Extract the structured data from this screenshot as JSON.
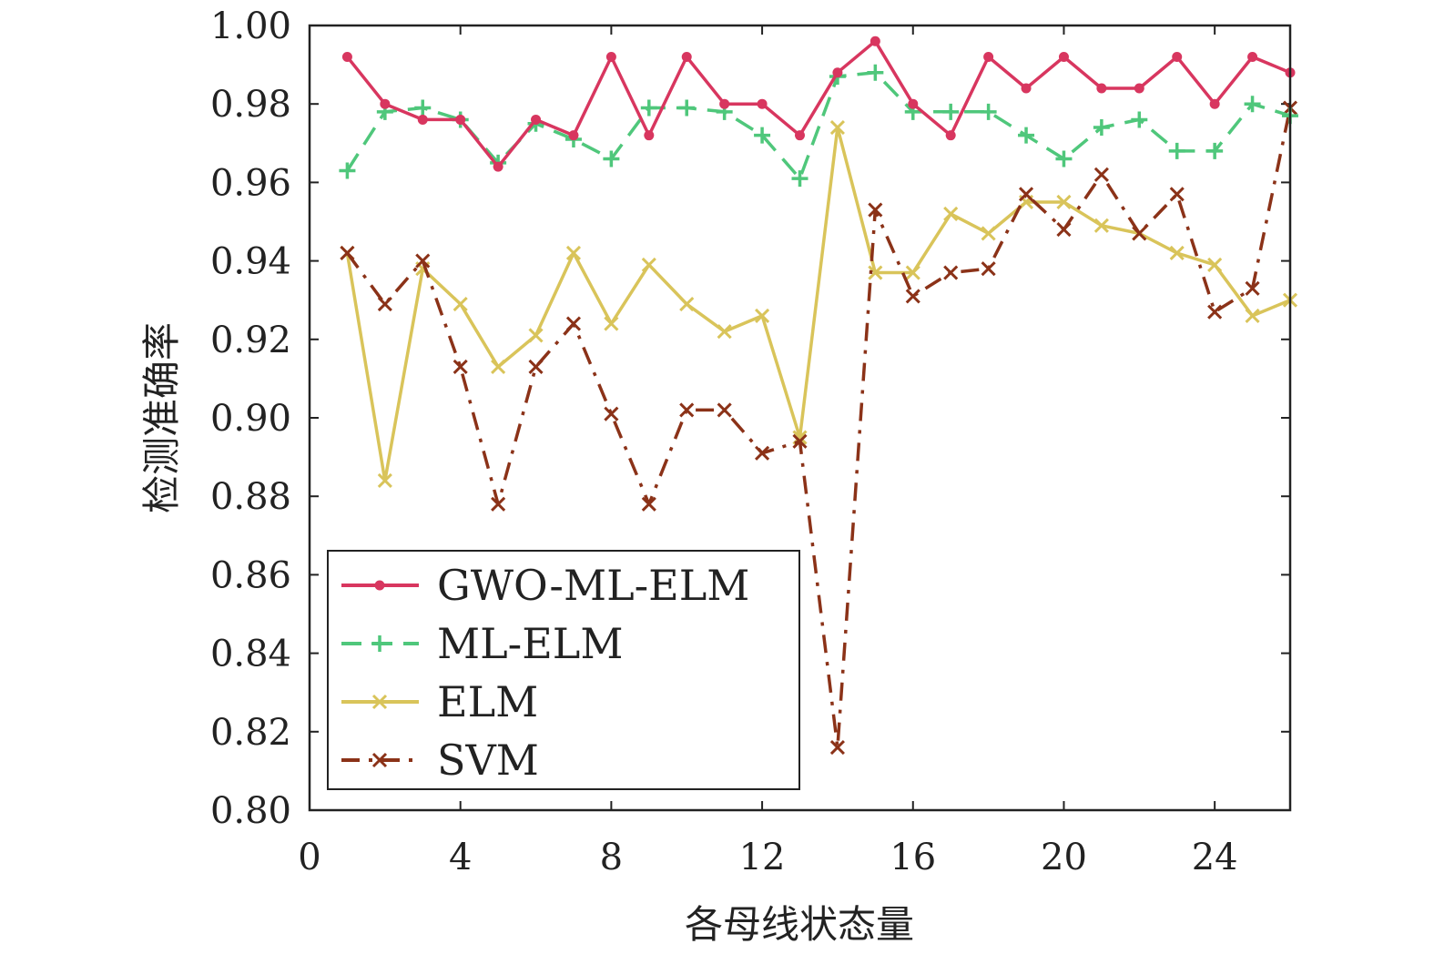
{
  "chart_data": {
    "type": "line",
    "xlabel": "各母线状态量",
    "ylabel": "检测准确率",
    "xlim": [
      0,
      26
    ],
    "ylim": [
      0.8,
      1.0
    ],
    "xticks": [
      0,
      4,
      8,
      12,
      16,
      20,
      24
    ],
    "yticks": [
      "0.80",
      "0.82",
      "0.84",
      "0.86",
      "0.88",
      "0.90",
      "0.92",
      "0.94",
      "0.96",
      "0.98",
      "1.00"
    ],
    "legend_position": "lower-left",
    "x": [
      1,
      2,
      3,
      4,
      5,
      6,
      7,
      8,
      9,
      10,
      11,
      12,
      13,
      14,
      15,
      16,
      17,
      18,
      19,
      20,
      21,
      22,
      23,
      24,
      25,
      26
    ],
    "series": [
      {
        "name": "GWO-ML-ELM",
        "color": "#d8365f",
        "style": "solid",
        "marker": "dot",
        "values": [
          0.992,
          0.98,
          0.976,
          0.976,
          0.964,
          0.976,
          0.972,
          0.992,
          0.972,
          0.992,
          0.98,
          0.98,
          0.972,
          0.988,
          0.996,
          0.98,
          0.972,
          0.992,
          0.984,
          0.992,
          0.984,
          0.984,
          0.992,
          0.98,
          0.992,
          0.988
        ]
      },
      {
        "name": "ML-ELM",
        "color": "#4fc77b",
        "style": "dashed",
        "marker": "plus",
        "values": [
          0.963,
          0.978,
          0.979,
          0.976,
          0.965,
          0.975,
          0.971,
          0.966,
          0.979,
          0.979,
          0.978,
          0.972,
          0.961,
          0.987,
          0.988,
          0.978,
          0.978,
          0.978,
          0.972,
          0.966,
          0.974,
          0.976,
          0.968,
          0.968,
          0.98,
          0.977
        ]
      },
      {
        "name": "ELM",
        "color": "#d9c45a",
        "style": "solid",
        "marker": "x",
        "values": [
          0.942,
          0.884,
          0.938,
          0.929,
          0.913,
          0.921,
          0.942,
          0.924,
          0.939,
          0.929,
          0.922,
          0.926,
          0.895,
          0.974,
          0.937,
          0.937,
          0.952,
          0.947,
          0.955,
          0.955,
          0.949,
          0.947,
          0.942,
          0.939,
          0.926,
          0.93
        ]
      },
      {
        "name": "SVM",
        "color": "#8b3218",
        "style": "dashdot",
        "marker": "x",
        "values": [
          0.942,
          0.929,
          0.94,
          0.913,
          0.878,
          0.913,
          0.924,
          0.901,
          0.878,
          0.902,
          0.902,
          0.891,
          0.894,
          0.816,
          0.953,
          0.931,
          0.937,
          0.938,
          0.957,
          0.948,
          0.962,
          0.947,
          0.957,
          0.927,
          0.933,
          0.979
        ]
      }
    ]
  }
}
